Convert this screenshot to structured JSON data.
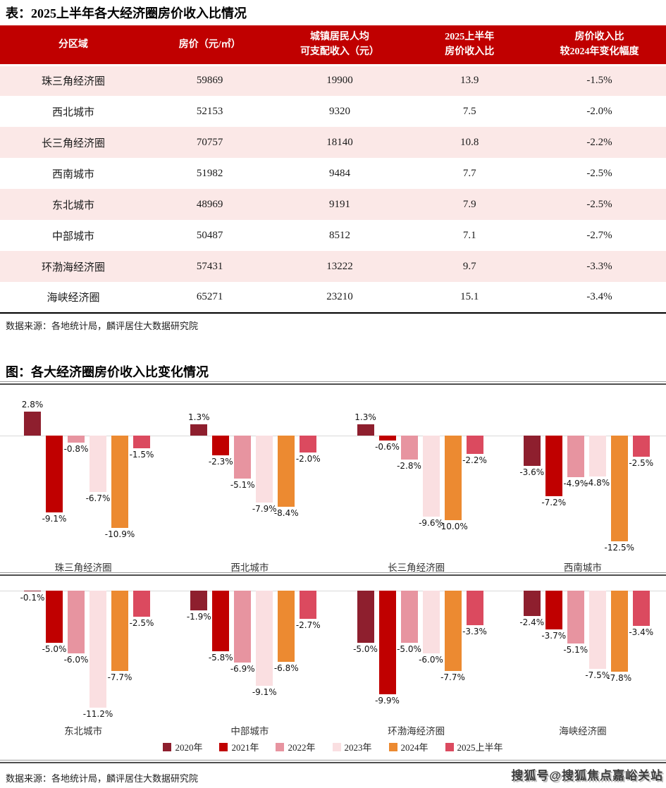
{
  "page": {
    "table_title": "表：2025上半年各大经济圈房价收入比情况",
    "chart_title": "图：各大经济圈房价收入比变化情况",
    "source_note": "数据来源：各地统计局，麟评居住大数据研究院",
    "watermark": "搜狐号@搜狐焦点嘉峪关站"
  },
  "colors": {
    "header_bg": "#C00000",
    "row_alt": "#FBE8E7",
    "table_bottom_border": "#000000",
    "separator": "#4F4F4F",
    "zero_line": "#D9D9D9",
    "watermark": "#3D3D3D"
  },
  "table": {
    "headers": [
      {
        "lines": [
          "分区域"
        ]
      },
      {
        "lines": [
          "房价（元/㎡）"
        ]
      },
      {
        "lines": [
          "城镇居民人均",
          "可支配收入（元）"
        ]
      },
      {
        "lines": [
          "2025上半年",
          "房价收入比"
        ]
      },
      {
        "lines": [
          "房价收入比",
          "较2024年变化幅度"
        ]
      }
    ],
    "rows": [
      {
        "region": "珠三角经济圈",
        "price": "59869",
        "income": "19900",
        "ratio": "13.9",
        "change": "-1.5%"
      },
      {
        "region": "西北城市",
        "price": "52153",
        "income": "9320",
        "ratio": "7.5",
        "change": "-2.0%"
      },
      {
        "region": "长三角经济圈",
        "price": "70757",
        "income": "18140",
        "ratio": "10.8",
        "change": "-2.2%"
      },
      {
        "region": "西南城市",
        "price": "51982",
        "income": "9484",
        "ratio": "7.7",
        "change": "-2.5%"
      },
      {
        "region": "东北城市",
        "price": "48969",
        "income": "9191",
        "ratio": "7.9",
        "change": "-2.5%"
      },
      {
        "region": "中部城市",
        "price": "50487",
        "income": "8512",
        "ratio": "7.1",
        "change": "-2.7%"
      },
      {
        "region": "环渤海经济圈",
        "price": "57431",
        "income": "13222",
        "ratio": "9.7",
        "change": "-3.3%"
      },
      {
        "region": "海峡经济圈",
        "price": "65271",
        "income": "23210",
        "ratio": "15.1",
        "change": "-3.4%"
      }
    ]
  },
  "chart_data": {
    "type": "bar",
    "title": "各大经济圈房价收入比变化情况",
    "unit": "%",
    "value_range": [
      -12.5,
      2.8
    ],
    "grid": "zero-baseline-only",
    "legend_position": "bottom-center",
    "layout": {
      "rows": 2,
      "cols": 4
    },
    "series_labels": [
      "2020年",
      "2021年",
      "2022年",
      "2023年",
      "2024年",
      "2025上半年"
    ],
    "series_colors": [
      "#8E1F2E",
      "#C00000",
      "#E794A0",
      "#FADFE1",
      "#EC8A31",
      "#DB4A5F"
    ],
    "groups": [
      {
        "name": "珠三角经济圈",
        "values": [
          2.8,
          -9.1,
          -0.8,
          -6.7,
          -10.9,
          -1.5
        ]
      },
      {
        "name": "西北城市",
        "values": [
          1.3,
          -2.3,
          -5.1,
          -7.9,
          -8.4,
          -2.0
        ]
      },
      {
        "name": "长三角经济圈",
        "values": [
          1.3,
          -0.6,
          -2.8,
          -9.6,
          -10.0,
          -2.2
        ]
      },
      {
        "name": "西南城市",
        "values": [
          -3.6,
          -7.2,
          -4.9,
          -4.8,
          -12.5,
          -2.5
        ]
      },
      {
        "name": "东北城市",
        "values": [
          -0.1,
          -5.0,
          -6.0,
          -11.2,
          -7.7,
          -2.5
        ]
      },
      {
        "name": "中部城市",
        "values": [
          -1.9,
          -5.8,
          -6.9,
          -9.1,
          -6.8,
          -2.7
        ]
      },
      {
        "name": "环渤海经济圈",
        "values": [
          -5.0,
          -9.9,
          -5.0,
          -6.0,
          -7.7,
          -3.3
        ]
      },
      {
        "name": "海峡经济圈",
        "values": [
          -2.4,
          -3.7,
          -5.1,
          -7.5,
          -7.8,
          -3.4
        ]
      }
    ]
  }
}
